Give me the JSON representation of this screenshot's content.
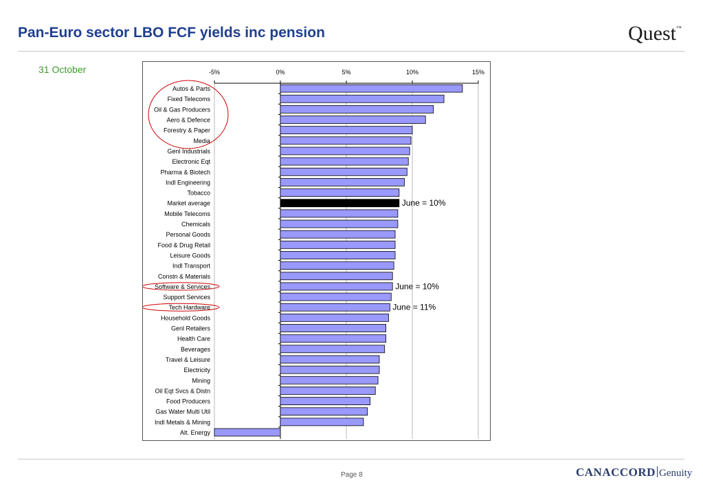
{
  "header": {
    "title": "Pan-Euro sector LBO FCF yields inc pension",
    "logo_text": "Quest",
    "logo_mark": "™"
  },
  "date_label": "31 October",
  "footer": {
    "page_label": "Page 8",
    "brand_primary": "CANACCORD",
    "brand_secondary": "Genuity"
  },
  "colors": {
    "title": "#1f3f8f",
    "date": "#3c9a2a",
    "bar_fill": "#9999ff",
    "bar_highlight": "#000000",
    "bar_stroke": "#000000",
    "circle": "#cc0000",
    "brand": "#2a3c6e"
  },
  "chart_data": {
    "type": "bar",
    "orientation": "horizontal",
    "xlim": [
      -5,
      15
    ],
    "ticks": [
      -5,
      0,
      5,
      10,
      15
    ],
    "tick_labels": [
      "-5%",
      "0%",
      "5%",
      "10%",
      "15%"
    ],
    "tick_position": "top",
    "grid": true,
    "highlight_category": "Market average",
    "categories": [
      "Autos & Parts",
      "Fixed Telecoms",
      "Oil & Gas Producers",
      "Aero & Defence",
      "Forestry & Paper",
      "Media",
      "Genl Industrials",
      "Electronic Eqt",
      "Pharma & Biotech",
      "Indl Engineering",
      "Tobacco",
      "Market average",
      "Mobile Telecoms",
      "Chemicals",
      "Personal Goods",
      "Food & Drug Retail",
      "Leisure Goods",
      "Indl Transport",
      "Constn & Materials",
      "Software & Services",
      "Support Services",
      "Tech Hardware",
      "Household Goods",
      "Genl Retailers",
      "Health Care",
      "Beverages",
      "Travel & Leisure",
      "Electricity",
      "Mining",
      "Oil Eqt Svcs & Distn",
      "Food Producers",
      "Gas Water Multi Util",
      "Indl Metals & Mining",
      "Alt. Energy"
    ],
    "values": [
      13.8,
      12.4,
      11.6,
      11.0,
      10.0,
      9.9,
      9.8,
      9.7,
      9.6,
      9.4,
      9.0,
      9.0,
      8.9,
      8.9,
      8.7,
      8.7,
      8.7,
      8.6,
      8.5,
      8.5,
      8.4,
      8.3,
      8.2,
      8.0,
      8.0,
      7.9,
      7.5,
      7.5,
      7.4,
      7.2,
      6.8,
      6.6,
      6.3,
      -5.0
    ],
    "annotations": [
      {
        "category": "Market average",
        "text": "June = 10%"
      },
      {
        "category": "Software & Services",
        "text": "June = 10%"
      },
      {
        "category": "Tech Hardware",
        "text": "June = 11%"
      }
    ],
    "circled_groups": [
      {
        "categories": [
          "Autos & Parts",
          "Fixed Telecoms",
          "Oil & Gas Producers",
          "Aero & Defence",
          "Forestry & Paper",
          "Media"
        ]
      },
      {
        "categories": [
          "Software & Services"
        ]
      },
      {
        "categories": [
          "Tech Hardware"
        ]
      }
    ]
  }
}
